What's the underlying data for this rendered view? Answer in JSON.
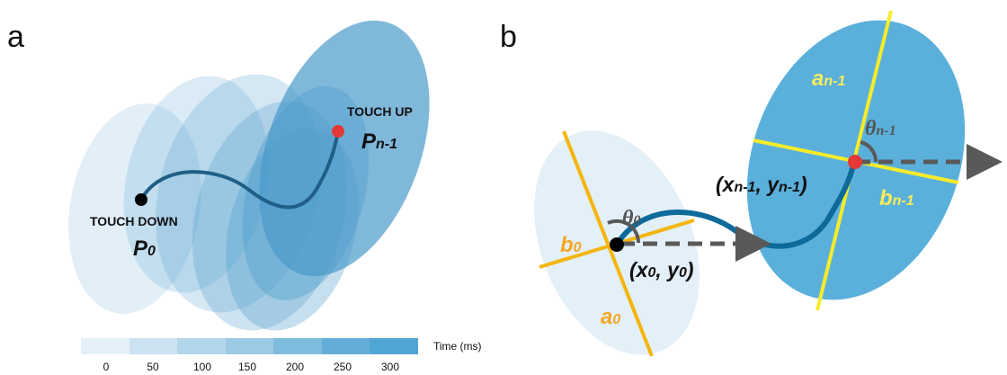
{
  "panel_a": {
    "letter": "a",
    "touch_down_label": "TOUCH DOWN",
    "p0_main": "P",
    "p0_sub": "0",
    "touch_up_label": "TOUCH UP",
    "pn_main": "P",
    "pn_sub": "n-1",
    "colorbar": {
      "label": "Time (ms)",
      "ticks": [
        "0",
        "50",
        "100",
        "150",
        "200",
        "250",
        "300"
      ],
      "colors": [
        "#e3f0f8",
        "#cde3f1",
        "#b4d6ea",
        "#9ccae4",
        "#7fbcde",
        "#63aed8",
        "#4fa6d5"
      ]
    },
    "ellipse_fill": "#4a9acb",
    "trajectory_color": "#1f5f87",
    "start_point_color": "#000000",
    "end_point_color": "#e53935"
  },
  "panel_b": {
    "letter": "b",
    "theta0_main": "θ",
    "theta0_sub": "0",
    "b0_main": "b",
    "b0_sub": "0",
    "a0_main": "a",
    "a0_sub": "0",
    "coord0": {
      "open": "(x",
      "sub1": "0",
      "mid": ", y",
      "sub2": "0",
      "close": ")"
    },
    "an_main": "a",
    "an_sub": "n-1",
    "thetan_main": "θ",
    "thetan_sub": "n-1",
    "bn_main": "b",
    "bn_sub": "n-1",
    "coordn": {
      "open": "(x",
      "sub1": "n-1",
      "mid": ", y",
      "sub2": "n-1",
      "close": ")"
    },
    "start_ellipse_fill": "#e3f0f8",
    "end_ellipse_fill": "#5ab0db",
    "start_axis_color": "#f5b50a",
    "end_axis_color": "#f7ec2a",
    "trajectory_color": "#0e6a9b",
    "arrow_color": "#595959"
  }
}
